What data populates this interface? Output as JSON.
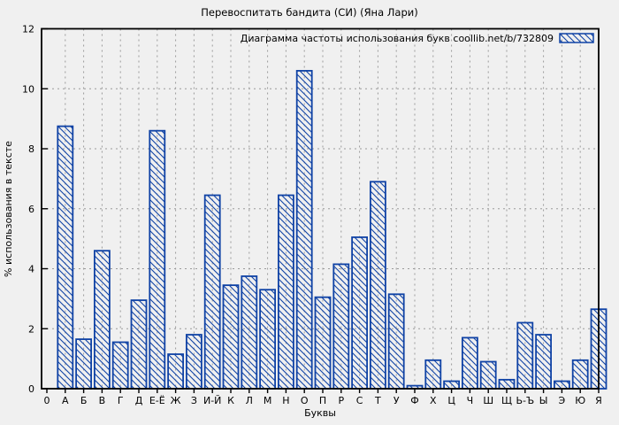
{
  "chart_data": {
    "type": "bar",
    "title": "Перевоспитать бандита (СИ) (Яна Лари)",
    "legend": "Диаграмма частоты использования букв coollib.net/b/732809",
    "legend_position": "top-right",
    "xlabel": "Буквы",
    "ylabel": "% использования в тексте",
    "origin_label": "0",
    "ylim": [
      0,
      12
    ],
    "yticks": [
      0,
      2,
      4,
      6,
      8,
      10,
      12
    ],
    "grid": true,
    "bar_style": "diagonal-hatch",
    "colors": {
      "bar": "#0f42a5",
      "grid": "#9a9a9a",
      "axis": "#000000",
      "background": "#f0f0f0"
    },
    "categories": [
      "А",
      "Б",
      "В",
      "Г",
      "Д",
      "Е-Ё",
      "Ж",
      "З",
      "И-Й",
      "К",
      "Л",
      "М",
      "Н",
      "О",
      "П",
      "Р",
      "С",
      "Т",
      "У",
      "Ф",
      "Х",
      "Ц",
      "Ч",
      "Ш",
      "Щ",
      "Ь-Ъ",
      "Ы",
      "Э",
      "Ю",
      "Я"
    ],
    "values": [
      8.75,
      1.65,
      4.6,
      1.55,
      2.95,
      8.6,
      1.15,
      1.8,
      6.45,
      3.45,
      3.75,
      3.3,
      6.45,
      10.6,
      3.05,
      4.15,
      5.05,
      6.9,
      3.15,
      0.1,
      0.95,
      0.25,
      1.7,
      0.9,
      0.3,
      2.2,
      1.8,
      0.25,
      0.95,
      2.65
    ]
  }
}
